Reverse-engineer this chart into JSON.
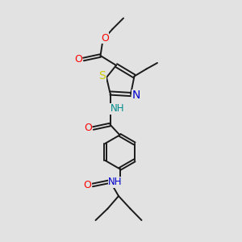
{
  "bg_color": "#e2e2e2",
  "bond_color": "#1a1a1a",
  "bond_width": 1.4,
  "atom_colors": {
    "O": "#ff0000",
    "N": "#0000cc",
    "S": "#cccc00",
    "NH_thiazole": "#008b8b",
    "NH_amide": "#008b8b",
    "C": "#1a1a1a"
  },
  "font_size": 9
}
